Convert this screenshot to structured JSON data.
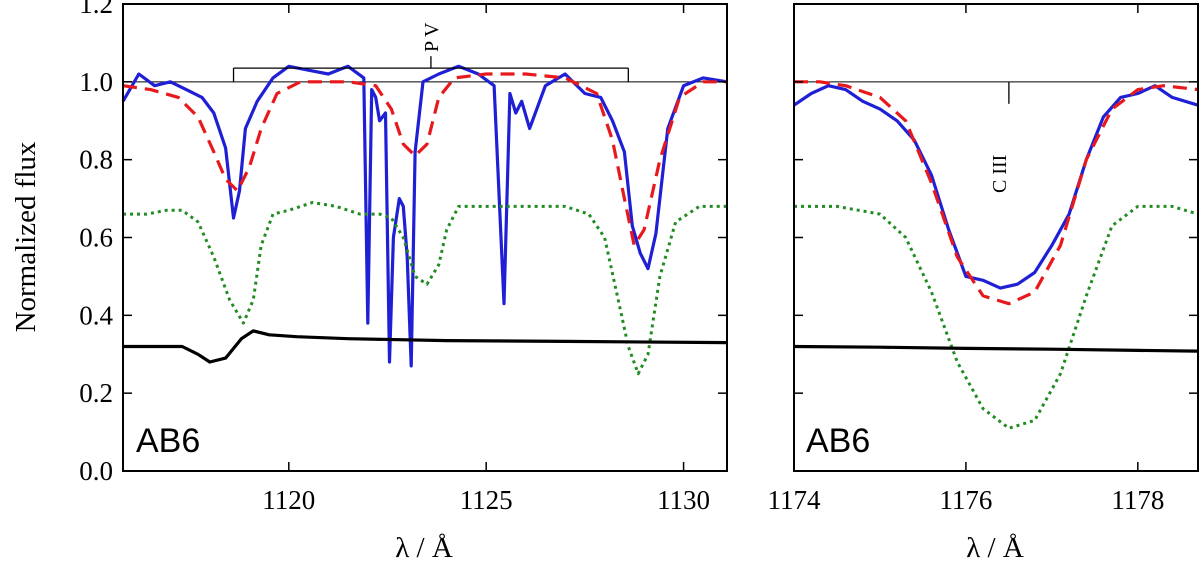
{
  "chart_data": [
    {
      "type": "line",
      "panel": "left",
      "ylabel": "Normalized flux",
      "xlabel": "λ / Å",
      "xlim": [
        1115.8,
        1131.1
      ],
      "ylim": [
        0.0,
        1.2
      ],
      "x_ticks": [
        1120,
        1125,
        1130
      ],
      "y_ticks": [
        0.0,
        0.2,
        0.4,
        0.6,
        0.8,
        1.0,
        1.2
      ],
      "y_tick_labels": [
        "0.0",
        "0.2",
        "0.4",
        "0.6",
        "0.8",
        "1.0",
        "1.2"
      ],
      "grid": false,
      "continuum": 1.0,
      "star_label": "AB6",
      "line_label": "P V",
      "doublet_marks": [
        1118.6,
        1128.6
      ],
      "bracket_y": 1.03,
      "series": [
        {
          "color": "#1f1fd6",
          "style": "solid",
          "x": [
            1115.8,
            1116.2,
            1116.6,
            1117.0,
            1117.4,
            1117.8,
            1118.1,
            1118.4,
            1118.6,
            1118.75,
            1118.9,
            1119.2,
            1119.6,
            1120.0,
            1120.5,
            1121.0,
            1121.5,
            1121.9,
            1122.0,
            1122.1,
            1122.2,
            1122.3,
            1122.45,
            1122.55,
            1122.65,
            1122.8,
            1122.9,
            1123.0,
            1123.1,
            1123.2,
            1123.4,
            1123.8,
            1124.3,
            1124.8,
            1125.2,
            1125.45,
            1125.6,
            1125.75,
            1125.9,
            1126.1,
            1126.5,
            1127.0,
            1127.5,
            1127.9,
            1128.2,
            1128.5,
            1128.7,
            1128.9,
            1129.1,
            1129.3,
            1129.6,
            1130.0,
            1130.5,
            1131.1
          ],
          "y": [
            0.95,
            1.02,
            0.99,
            1.0,
            0.98,
            0.96,
            0.92,
            0.83,
            0.65,
            0.72,
            0.88,
            0.95,
            1.01,
            1.04,
            1.03,
            1.02,
            1.04,
            1.01,
            0.38,
            0.98,
            0.96,
            0.9,
            0.92,
            0.28,
            0.6,
            0.7,
            0.68,
            0.55,
            0.27,
            0.82,
            1.0,
            1.02,
            1.04,
            1.02,
            0.99,
            0.43,
            0.97,
            0.92,
            0.95,
            0.88,
            0.99,
            1.02,
            0.97,
            0.96,
            0.9,
            0.82,
            0.63,
            0.56,
            0.52,
            0.61,
            0.88,
            0.99,
            1.01,
            1.0
          ]
        },
        {
          "color": "#e8191c",
          "style": "dashed",
          "x": [
            1115.8,
            1116.5,
            1117.2,
            1117.7,
            1118.1,
            1118.4,
            1118.7,
            1119.0,
            1119.3,
            1119.7,
            1120.3,
            1121.5,
            1122.2,
            1122.6,
            1122.9,
            1123.2,
            1123.5,
            1123.8,
            1124.2,
            1125.0,
            1126.0,
            1127.0,
            1127.8,
            1128.2,
            1128.5,
            1128.75,
            1129.0,
            1129.4,
            1129.9,
            1130.5,
            1131.1
          ],
          "y": [
            0.99,
            0.98,
            0.96,
            0.91,
            0.82,
            0.75,
            0.72,
            0.78,
            0.88,
            0.97,
            1.0,
            1.0,
            0.99,
            0.93,
            0.84,
            0.81,
            0.84,
            0.96,
            1.01,
            1.02,
            1.02,
            1.01,
            0.97,
            0.85,
            0.7,
            0.58,
            0.62,
            0.8,
            0.96,
            1.0,
            1.0
          ]
        },
        {
          "color": "#228b22",
          "style": "dotted",
          "x": [
            1115.8,
            1116.4,
            1116.9,
            1117.3,
            1117.7,
            1118.1,
            1118.5,
            1118.85,
            1119.1,
            1119.3,
            1119.6,
            1120.0,
            1120.6,
            1121.2,
            1121.8,
            1122.3,
            1122.6,
            1122.9,
            1123.2,
            1123.5,
            1123.8,
            1124.0,
            1124.3,
            1125.0,
            1126.0,
            1127.0,
            1127.6,
            1128.0,
            1128.3,
            1128.6,
            1128.85,
            1129.1,
            1129.4,
            1129.8,
            1130.4,
            1131.1
          ],
          "y": [
            0.66,
            0.66,
            0.67,
            0.67,
            0.64,
            0.55,
            0.44,
            0.38,
            0.44,
            0.58,
            0.66,
            0.67,
            0.69,
            0.68,
            0.66,
            0.66,
            0.65,
            0.6,
            0.5,
            0.48,
            0.53,
            0.62,
            0.68,
            0.68,
            0.68,
            0.68,
            0.66,
            0.6,
            0.46,
            0.32,
            0.25,
            0.3,
            0.5,
            0.64,
            0.68,
            0.68
          ]
        },
        {
          "color": "#000000",
          "style": "solid",
          "x": [
            1115.8,
            1116.8,
            1117.3,
            1117.7,
            1118.0,
            1118.4,
            1118.8,
            1119.1,
            1119.5,
            1120.2,
            1121.5,
            1124.0,
            1127.0,
            1131.1
          ],
          "y": [
            0.32,
            0.32,
            0.32,
            0.3,
            0.28,
            0.29,
            0.34,
            0.36,
            0.35,
            0.345,
            0.34,
            0.335,
            0.333,
            0.33
          ]
        }
      ]
    },
    {
      "type": "line",
      "panel": "right",
      "xlabel": "λ / Å",
      "xlim": [
        1174.0,
        1178.7
      ],
      "ylim": [
        0.0,
        1.2
      ],
      "x_ticks": [
        1174,
        1176,
        1178
      ],
      "grid": false,
      "continuum": 1.0,
      "star_label": "AB6",
      "line_label": "C III",
      "line_mark": 1176.5,
      "series": [
        {
          "color": "#1f1fd6",
          "style": "solid",
          "x": [
            1174.0,
            1174.2,
            1174.4,
            1174.6,
            1174.8,
            1175.0,
            1175.2,
            1175.4,
            1175.6,
            1175.8,
            1176.0,
            1176.2,
            1176.4,
            1176.6,
            1176.8,
            1177.0,
            1177.2,
            1177.4,
            1177.6,
            1177.8,
            1178.0,
            1178.2,
            1178.4,
            1178.7
          ],
          "y": [
            0.94,
            0.97,
            0.99,
            0.98,
            0.95,
            0.93,
            0.9,
            0.85,
            0.76,
            0.62,
            0.5,
            0.49,
            0.47,
            0.48,
            0.51,
            0.58,
            0.66,
            0.8,
            0.91,
            0.96,
            0.97,
            0.99,
            0.96,
            0.94
          ]
        },
        {
          "color": "#e8191c",
          "style": "dashed",
          "x": [
            1174.0,
            1174.3,
            1174.6,
            1175.0,
            1175.3,
            1175.6,
            1175.9,
            1176.2,
            1176.5,
            1176.8,
            1177.1,
            1177.4,
            1177.7,
            1178.0,
            1178.3,
            1178.7
          ],
          "y": [
            1.0,
            1.0,
            0.99,
            0.96,
            0.9,
            0.74,
            0.55,
            0.45,
            0.43,
            0.46,
            0.58,
            0.8,
            0.93,
            0.98,
            0.99,
            0.98
          ]
        },
        {
          "color": "#228b22",
          "style": "dotted",
          "x": [
            1174.0,
            1174.5,
            1175.0,
            1175.3,
            1175.6,
            1175.9,
            1176.2,
            1176.5,
            1176.8,
            1177.1,
            1177.4,
            1177.7,
            1178.0,
            1178.4,
            1178.7
          ],
          "y": [
            0.68,
            0.68,
            0.66,
            0.6,
            0.46,
            0.28,
            0.16,
            0.11,
            0.13,
            0.25,
            0.45,
            0.63,
            0.68,
            0.68,
            0.66
          ]
        },
        {
          "color": "#000000",
          "style": "solid",
          "x": [
            1174.0,
            1175.0,
            1176.0,
            1177.0,
            1178.0,
            1178.7
          ],
          "y": [
            0.32,
            0.318,
            0.315,
            0.313,
            0.31,
            0.308
          ]
        }
      ]
    }
  ]
}
